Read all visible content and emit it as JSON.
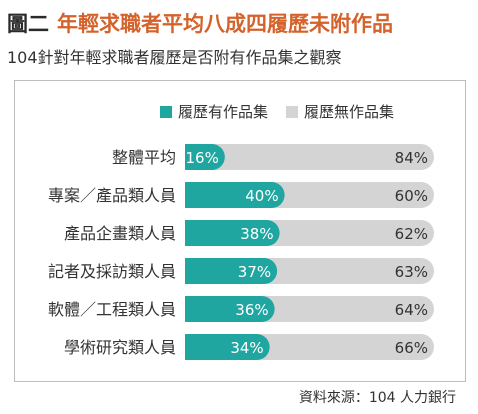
{
  "header": {
    "prefix": "圖二",
    "title": "年輕求職者平均八成四履歷未附作品",
    "subtitle": "104針對年輕求職者履歷是否附有作品集之觀察"
  },
  "source": "資料來源：104 人力銀行",
  "colors": {
    "with": "#1fa6a0",
    "without": "#d4d4d4",
    "title_accent": "#d4622a"
  },
  "chart_data": {
    "type": "bar",
    "stacked": true,
    "orientation": "horizontal",
    "categories": [
      "整體平均",
      "專案／產品類人員",
      "產品企畫類人員",
      "記者及採訪類人員",
      "軟體／工程類人員",
      "學術研究類人員"
    ],
    "series": [
      {
        "name": "履歷有作品集",
        "values": [
          16,
          40,
          38,
          37,
          36,
          34
        ],
        "labels": [
          "16%",
          "40%",
          "38%",
          "37%",
          "36%",
          "34%"
        ]
      },
      {
        "name": "履歷無作品集",
        "values": [
          84,
          60,
          62,
          63,
          64,
          66
        ],
        "labels": [
          "84%",
          "60%",
          "62%",
          "63%",
          "64%",
          "66%"
        ]
      }
    ],
    "xlim": [
      0,
      100
    ],
    "legend": "top-right"
  }
}
